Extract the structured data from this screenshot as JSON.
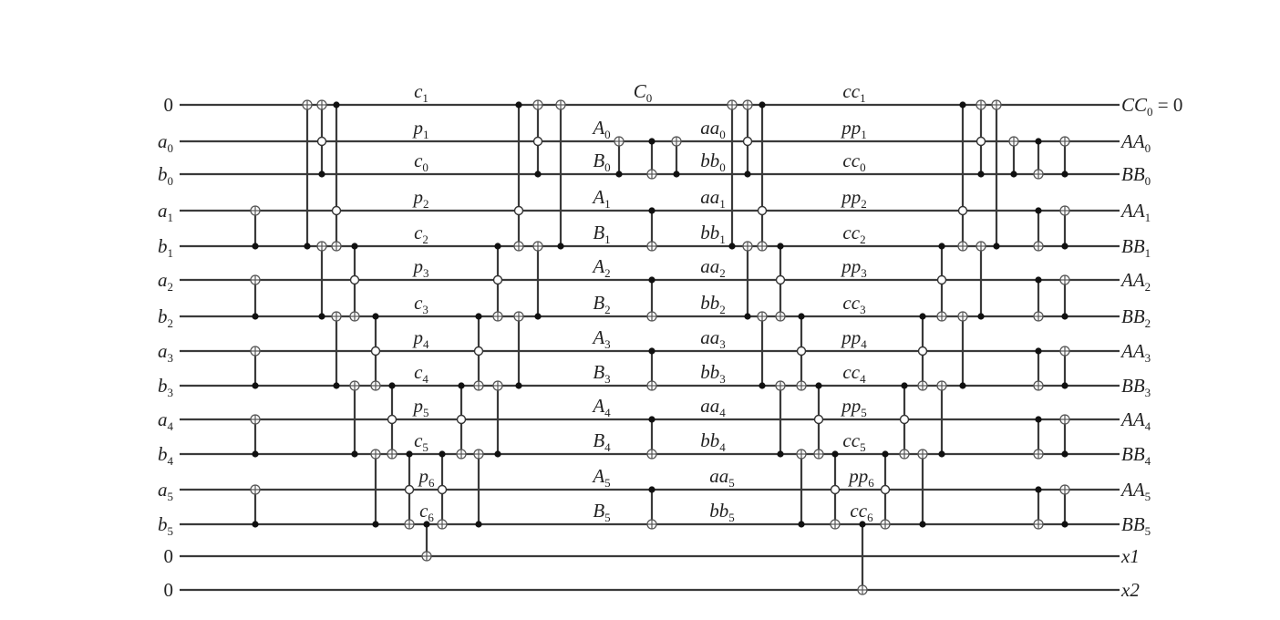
{
  "inputs": [
    {
      "base": "0"
    },
    {
      "base": "a",
      "sub": "0"
    },
    {
      "base": "b",
      "sub": "0"
    },
    {
      "base": "a",
      "sub": "1"
    },
    {
      "base": "b",
      "sub": "1"
    },
    {
      "base": "a",
      "sub": "2"
    },
    {
      "base": "b",
      "sub": "2"
    },
    {
      "base": "a",
      "sub": "3"
    },
    {
      "base": "b",
      "sub": "3"
    },
    {
      "base": "a",
      "sub": "4"
    },
    {
      "base": "b",
      "sub": "4"
    },
    {
      "base": "a",
      "sub": "5"
    },
    {
      "base": "b",
      "sub": "5"
    },
    {
      "base": "0"
    },
    {
      "base": "0"
    }
  ],
  "outputs": [
    {
      "base": "CC",
      "sub": "0",
      "suffix": " = 0"
    },
    {
      "base": "AA",
      "sub": "0"
    },
    {
      "base": "BB",
      "sub": "0"
    },
    {
      "base": "AA",
      "sub": "1"
    },
    {
      "base": "BB",
      "sub": "1"
    },
    {
      "base": "AA",
      "sub": "2"
    },
    {
      "base": "BB",
      "sub": "2"
    },
    {
      "base": "AA",
      "sub": "3"
    },
    {
      "base": "BB",
      "sub": "3"
    },
    {
      "base": "AA",
      "sub": "4"
    },
    {
      "base": "BB",
      "sub": "4"
    },
    {
      "base": "AA",
      "sub": "5"
    },
    {
      "base": "BB",
      "sub": "5"
    },
    {
      "base": "x1"
    },
    {
      "base": "x2"
    }
  ],
  "stage_labels": [
    {
      "stage": "first",
      "labels": [
        {
          "wire": 0,
          "base": "c",
          "sub": "1"
        },
        {
          "wire": 1,
          "base": "p",
          "sub": "1"
        },
        {
          "wire": 2,
          "base": "c",
          "sub": "0"
        },
        {
          "wire": 3,
          "base": "p",
          "sub": "2"
        },
        {
          "wire": 4,
          "base": "c",
          "sub": "2"
        },
        {
          "wire": 5,
          "base": "p",
          "sub": "3"
        },
        {
          "wire": 6,
          "base": "c",
          "sub": "3"
        },
        {
          "wire": 7,
          "base": "p",
          "sub": "4"
        },
        {
          "wire": 8,
          "base": "c",
          "sub": "4"
        },
        {
          "wire": 9,
          "base": "p",
          "sub": "5"
        },
        {
          "wire": 10,
          "base": "c",
          "sub": "5"
        },
        {
          "wire": 11,
          "base": "p",
          "sub": "6"
        },
        {
          "wire": 12,
          "base": "c",
          "sub": "6"
        }
      ]
    },
    {
      "stage": "middle-top",
      "labels": [
        {
          "wire": 0,
          "base": "C",
          "sub": "0"
        }
      ]
    },
    {
      "stage": "middle-left",
      "labels": [
        {
          "wire": 1,
          "base": "A",
          "sub": "0"
        },
        {
          "wire": 2,
          "base": "B",
          "sub": "0"
        },
        {
          "wire": 3,
          "base": "A",
          "sub": "1"
        },
        {
          "wire": 4,
          "base": "B",
          "sub": "1"
        },
        {
          "wire": 5,
          "base": "A",
          "sub": "2"
        },
        {
          "wire": 6,
          "base": "B",
          "sub": "2"
        },
        {
          "wire": 7,
          "base": "A",
          "sub": "3"
        },
        {
          "wire": 8,
          "base": "B",
          "sub": "3"
        },
        {
          "wire": 9,
          "base": "A",
          "sub": "4"
        },
        {
          "wire": 10,
          "base": "B",
          "sub": "4"
        },
        {
          "wire": 11,
          "base": "A",
          "sub": "5"
        },
        {
          "wire": 12,
          "base": "B",
          "sub": "5"
        }
      ]
    },
    {
      "stage": "middle-right",
      "labels": [
        {
          "wire": 1,
          "base": "aa",
          "sub": "0"
        },
        {
          "wire": 2,
          "base": "bb",
          "sub": "0"
        },
        {
          "wire": 3,
          "base": "aa",
          "sub": "1"
        },
        {
          "wire": 4,
          "base": "bb",
          "sub": "1"
        },
        {
          "wire": 5,
          "base": "aa",
          "sub": "2"
        },
        {
          "wire": 6,
          "base": "bb",
          "sub": "2"
        },
        {
          "wire": 7,
          "base": "aa",
          "sub": "3"
        },
        {
          "wire": 8,
          "base": "bb",
          "sub": "3"
        },
        {
          "wire": 9,
          "base": "aa",
          "sub": "4"
        },
        {
          "wire": 10,
          "base": "bb",
          "sub": "4"
        },
        {
          "wire": 11,
          "base": "aa",
          "sub": "5"
        },
        {
          "wire": 12,
          "base": "bb",
          "sub": "5"
        }
      ]
    },
    {
      "stage": "last",
      "labels": [
        {
          "wire": 0,
          "base": "cc",
          "sub": "1"
        },
        {
          "wire": 1,
          "base": "pp",
          "sub": "1"
        },
        {
          "wire": 2,
          "base": "cc",
          "sub": "0"
        },
        {
          "wire": 3,
          "base": "pp",
          "sub": "2"
        },
        {
          "wire": 4,
          "base": "cc",
          "sub": "2"
        },
        {
          "wire": 5,
          "base": "pp",
          "sub": "3"
        },
        {
          "wire": 6,
          "base": "cc",
          "sub": "3"
        },
        {
          "wire": 7,
          "base": "pp",
          "sub": "4"
        },
        {
          "wire": 8,
          "base": "cc",
          "sub": "4"
        },
        {
          "wire": 9,
          "base": "pp",
          "sub": "5"
        },
        {
          "wire": 10,
          "base": "cc",
          "sub": "5"
        },
        {
          "wire": 11,
          "base": "pp",
          "sub": "6"
        },
        {
          "wire": 12,
          "base": "cc",
          "sub": "6"
        }
      ]
    }
  ],
  "gate_legend": {
    "t": "target (XOR)",
    "c": "filled control",
    "o": "open control"
  },
  "columns": [
    [
      {
        "t": 3,
        "c": [
          4
        ]
      },
      {
        "t": 5,
        "c": [
          6
        ]
      },
      {
        "t": 7,
        "c": [
          8
        ]
      },
      {
        "t": 9,
        "c": [
          10
        ]
      },
      {
        "t": 11,
        "c": [
          12
        ]
      }
    ],
    [
      {
        "t": 0,
        "c": [
          4
        ]
      }
    ],
    [
      {
        "t": 0,
        "o": [
          1
        ],
        "c": [
          2
        ]
      },
      {
        "t": 4,
        "c": [
          6
        ]
      }
    ],
    [
      {
        "t": 4,
        "c": [
          0
        ],
        "o": [
          3
        ]
      },
      {
        "t": 6,
        "c": [
          8
        ]
      }
    ],
    [
      {
        "t": 6,
        "c": [
          4
        ],
        "o": [
          5
        ]
      },
      {
        "t": 8,
        "c": [
          10
        ]
      }
    ],
    [
      {
        "t": 8,
        "c": [
          6
        ],
        "o": [
          7
        ]
      },
      {
        "t": 10,
        "c": [
          12
        ]
      }
    ],
    [
      {
        "t": 10,
        "c": [
          8
        ],
        "o": [
          9
        ]
      }
    ],
    [
      {
        "t": 12,
        "c": [
          10
        ],
        "o": [
          11
        ]
      }
    ],
    [
      {
        "t": 13,
        "c": [
          12
        ]
      }
    ],
    [
      {
        "t": 12,
        "c": [
          10
        ],
        "o": [
          11
        ]
      }
    ],
    [
      {
        "t": 10,
        "c": [
          8
        ],
        "o": [
          9
        ]
      }
    ],
    [
      {
        "t": 8,
        "c": [
          6
        ],
        "o": [
          7
        ]
      },
      {
        "t": 10,
        "c": [
          12
        ]
      }
    ],
    [
      {
        "t": 6,
        "c": [
          4
        ],
        "o": [
          5
        ]
      },
      {
        "t": 8,
        "c": [
          10
        ]
      }
    ],
    [
      {
        "t": 4,
        "c": [
          0
        ],
        "o": [
          3
        ]
      },
      {
        "t": 6,
        "c": [
          8
        ]
      }
    ],
    [
      {
        "t": 0,
        "o": [
          1
        ],
        "c": [
          2
        ]
      },
      {
        "t": 4,
        "c": [
          6
        ]
      }
    ],
    [
      {
        "t": 0,
        "c": [
          4
        ]
      }
    ],
    [
      {
        "t": 1,
        "c": [
          2
        ]
      }
    ],
    [
      {
        "t": 2,
        "c": [
          1
        ]
      },
      {
        "t": 4,
        "c": [
          3
        ]
      },
      {
        "t": 6,
        "c": [
          5
        ]
      },
      {
        "t": 8,
        "c": [
          7
        ]
      },
      {
        "t": 10,
        "c": [
          9
        ]
      },
      {
        "t": 12,
        "c": [
          11
        ]
      }
    ],
    [
      {
        "t": 1,
        "c": [
          2
        ]
      }
    ],
    [
      {
        "t": 0,
        "c": [
          4
        ]
      }
    ],
    [
      {
        "t": 0,
        "o": [
          1
        ],
        "c": [
          2
        ]
      },
      {
        "t": 4,
        "c": [
          6
        ]
      }
    ],
    [
      {
        "t": 4,
        "c": [
          0
        ],
        "o": [
          3
        ]
      },
      {
        "t": 6,
        "c": [
          8
        ]
      }
    ],
    [
      {
        "t": 6,
        "c": [
          4
        ],
        "o": [
          5
        ]
      },
      {
        "t": 8,
        "c": [
          10
        ]
      }
    ],
    [
      {
        "t": 8,
        "c": [
          6
        ],
        "o": [
          7
        ]
      },
      {
        "t": 10,
        "c": [
          12
        ]
      }
    ],
    [
      {
        "t": 10,
        "c": [
          8
        ],
        "o": [
          9
        ]
      }
    ],
    [
      {
        "t": 12,
        "c": [
          10
        ],
        "o": [
          11
        ]
      }
    ],
    [
      {
        "t": 14,
        "c": [
          12
        ]
      }
    ],
    [
      {
        "t": 12,
        "c": [
          10
        ],
        "o": [
          11
        ]
      }
    ],
    [
      {
        "t": 10,
        "c": [
          8
        ],
        "o": [
          9
        ]
      }
    ],
    [
      {
        "t": 8,
        "c": [
          6
        ],
        "o": [
          7
        ]
      },
      {
        "t": 10,
        "c": [
          12
        ]
      }
    ],
    [
      {
        "t": 6,
        "c": [
          4
        ],
        "o": [
          5
        ]
      },
      {
        "t": 8,
        "c": [
          10
        ]
      }
    ],
    [
      {
        "t": 4,
        "c": [
          0
        ],
        "o": [
          3
        ]
      },
      {
        "t": 6,
        "c": [
          8
        ]
      }
    ],
    [
      {
        "t": 0,
        "o": [
          1
        ],
        "c": [
          2
        ]
      },
      {
        "t": 4,
        "c": [
          6
        ]
      }
    ],
    [
      {
        "t": 0,
        "c": [
          4
        ]
      }
    ],
    [
      {
        "t": 1,
        "c": [
          2
        ]
      }
    ],
    [
      {
        "t": 2,
        "c": [
          1
        ]
      },
      {
        "t": 4,
        "c": [
          3
        ]
      },
      {
        "t": 6,
        "c": [
          5
        ]
      },
      {
        "t": 8,
        "c": [
          7
        ]
      },
      {
        "t": 10,
        "c": [
          9
        ]
      },
      {
        "t": 12,
        "c": [
          11
        ]
      }
    ],
    [
      {
        "t": 1,
        "c": [
          2
        ]
      },
      {
        "t": 3,
        "c": [
          4
        ]
      },
      {
        "t": 5,
        "c": [
          6
        ]
      },
      {
        "t": 7,
        "c": [
          8
        ]
      },
      {
        "t": 9,
        "c": [
          10
        ]
      },
      {
        "t": 11,
        "c": [
          12
        ]
      }
    ]
  ]
}
